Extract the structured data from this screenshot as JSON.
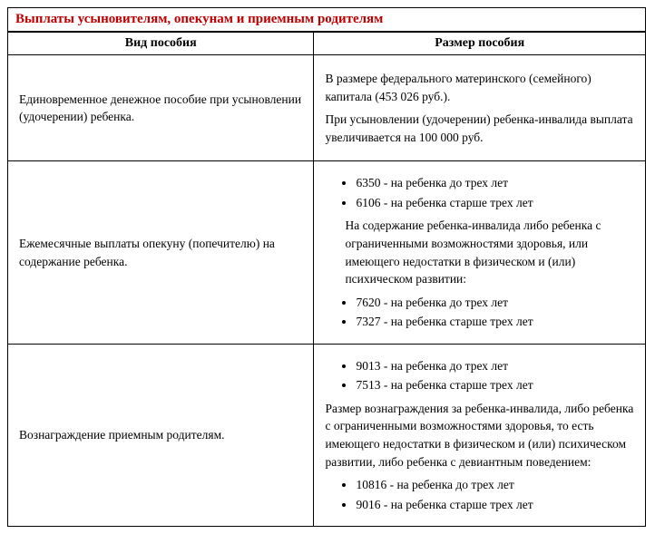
{
  "title": "Выплаты усыновителям, опекунам и приемным родителям",
  "headers": {
    "type": "Вид пособия",
    "size": "Размер пособия"
  },
  "rows": [
    {
      "type": "Единовременное денежное пособие при усыновлении (удочерении) ребенка.",
      "size_p1": "В размере федерального материнского (семейного) капитала (453 026 руб.).",
      "size_p2": "При усыновлении (удочерении) ребенка-инвалида выплата увеличивается на 100 000 руб."
    },
    {
      "type": "Ежемесячные выплаты опекуну (попечителю) на содержание ребенка.",
      "b1": "6350 - на ребенка до трех лет",
      "b2": "6106 - на ребенка старше трех лет",
      "mid": "На содержание ребенка-инвалида либо ребенка с ограниченными возможностями здоровья, или имеющего недостатки в физическом и (или) психическом развитии:",
      "b3": "7620 - на ребенка до трех лет",
      "b4": "7327 - на ребенка старше трех лет"
    },
    {
      "type": "Вознаграждение приемным родителям.",
      "b1": "9013 - на ребенка до трех лет",
      "b2": "7513 - на ребенка старше трех лет",
      "mid": "Размер вознаграждения за ребенка-инвалида, либо ребенка с ограниченными возможностями здоровья, то есть имеющего недостатки в физическом и (или) психическом развитии, либо ребенка с девиантным поведением:",
      "b3": "10816 - на ребенка до трех лет",
      "b4": "9016 - на ребенка старше трех лет"
    }
  ]
}
